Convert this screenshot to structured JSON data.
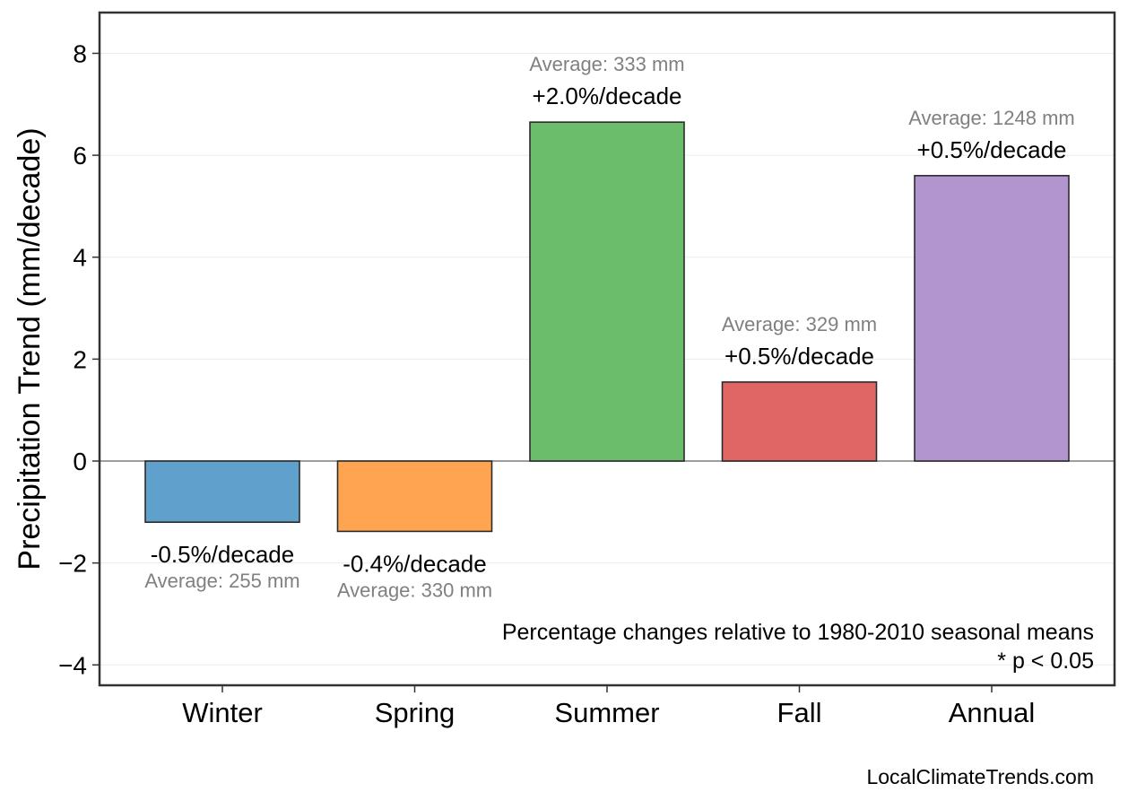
{
  "chart_data": {
    "type": "bar",
    "categories": [
      "Winter",
      "Spring",
      "Summer",
      "Fall",
      "Annual"
    ],
    "values": [
      -1.2,
      -1.38,
      6.65,
      1.55,
      5.6
    ],
    "colors": [
      "#5fa0cc",
      "#ffa552",
      "#6bbd6b",
      "#e06666",
      "#b294cf"
    ],
    "percent_labels": [
      "-0.5%/decade",
      "-0.4%/decade",
      "+2.0%/decade",
      "+0.5%/decade",
      "+0.5%/decade"
    ],
    "average_labels": [
      "Average: 255 mm",
      "Average: 330 mm",
      "Average: 333 mm",
      "Average: 329 mm",
      "Average: 1248 mm"
    ],
    "ylabel": "Precipitation Trend (mm/decade)",
    "ylim": [
      -4.4,
      8.8
    ],
    "yticks": [
      -4,
      -2,
      0,
      2,
      4,
      6,
      8
    ],
    "ytick_labels": [
      "−4",
      "−2",
      "0",
      "2",
      "4",
      "6",
      "8"
    ],
    "grid": true,
    "notes": [
      "Percentage changes relative to 1980-2010 seasonal means",
      "* p < 0.05"
    ],
    "source": "LocalClimateTrends.com"
  }
}
